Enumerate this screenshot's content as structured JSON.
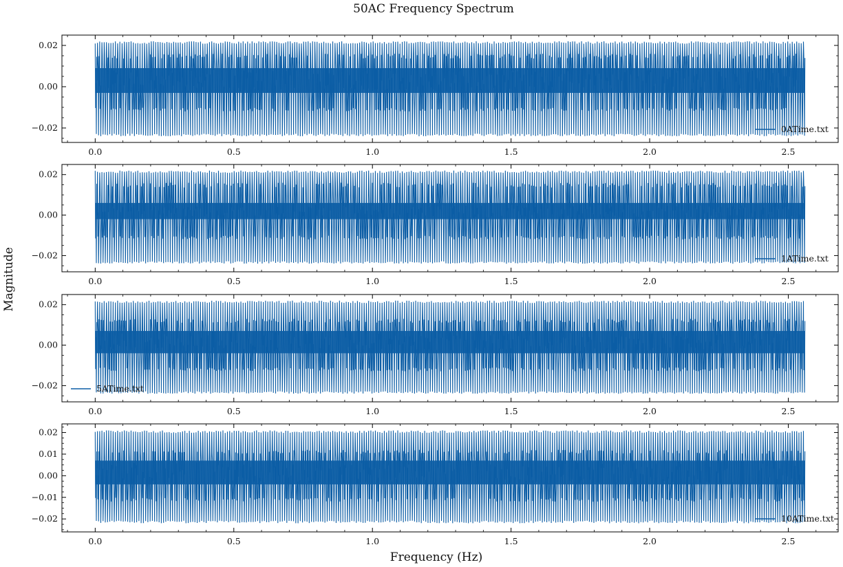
{
  "figure": {
    "title": "50AC Frequency Spectrum",
    "xlabel": "Frequency (Hz)",
    "ylabel": "Magnitude"
  },
  "chart_data": [
    {
      "type": "line",
      "series": [
        {
          "name": "0ATime.txt",
          "color": "#0c5da5"
        }
      ],
      "x_range": [
        0,
        2.56
      ],
      "xlim": [
        -0.12,
        2.68
      ],
      "ylim": [
        -0.027,
        0.025
      ],
      "yticks": [
        -0.02,
        0.0,
        0.02
      ],
      "ytick_labels": [
        "−0.02",
        "0.00",
        "0.02"
      ],
      "xticks": [
        0.0,
        0.5,
        1.0,
        1.5,
        2.0,
        2.5
      ],
      "xtick_labels": [
        "0.0",
        "0.5",
        "1.0",
        "1.5",
        "2.0",
        "2.5"
      ],
      "envelope": {
        "outer_max": 0.022,
        "outer_min": -0.024,
        "inner_max": 0.016,
        "inner_min": -0.012,
        "core_max": 0.009,
        "core_min": -0.003
      },
      "legend": "lower right",
      "grid": false
    },
    {
      "type": "line",
      "series": [
        {
          "name": "1ATime.txt",
          "color": "#0c5da5"
        }
      ],
      "x_range": [
        0,
        2.56
      ],
      "xlim": [
        -0.12,
        2.68
      ],
      "ylim": [
        -0.028,
        0.025
      ],
      "yticks": [
        -0.02,
        0.0,
        0.02
      ],
      "ytick_labels": [
        "−0.02",
        "0.00",
        "0.02"
      ],
      "xticks": [
        0.0,
        0.5,
        1.0,
        1.5,
        2.0,
        2.5
      ],
      "xtick_labels": [
        "0.0",
        "0.5",
        "1.0",
        "1.5",
        "2.0",
        "2.5"
      ],
      "envelope": {
        "outer_max": 0.022,
        "outer_min": -0.024,
        "inner_max": 0.016,
        "inner_min": -0.012,
        "core_max": 0.006,
        "core_min": -0.002
      },
      "legend": "lower right",
      "grid": false
    },
    {
      "type": "line",
      "series": [
        {
          "name": "5ATime.txt",
          "color": "#0c5da5"
        }
      ],
      "x_range": [
        0,
        2.56
      ],
      "xlim": [
        -0.12,
        2.68
      ],
      "ylim": [
        -0.028,
        0.025
      ],
      "yticks": [
        -0.02,
        0.0,
        0.02
      ],
      "ytick_labels": [
        "−0.02",
        "0.00",
        "0.02"
      ],
      "xticks": [
        0.0,
        0.5,
        1.0,
        1.5,
        2.0,
        2.5
      ],
      "xtick_labels": [
        "0.0",
        "0.5",
        "1.0",
        "1.5",
        "2.0",
        "2.5"
      ],
      "envelope": {
        "outer_max": 0.022,
        "outer_min": -0.024,
        "inner_max": 0.013,
        "inner_min": -0.013,
        "core_max": 0.007,
        "core_min": -0.004
      },
      "legend": "lower left",
      "grid": false
    },
    {
      "type": "line",
      "series": [
        {
          "name": "10ATime.txt",
          "color": "#0c5da5"
        }
      ],
      "x_range": [
        0,
        2.56
      ],
      "xlim": [
        -0.12,
        2.68
      ],
      "ylim": [
        -0.026,
        0.024
      ],
      "yticks": [
        -0.02,
        -0.01,
        0.0,
        0.01,
        0.02
      ],
      "ytick_labels": [
        "−0.02",
        "−0.01",
        "0.00",
        "0.01",
        "0.02"
      ],
      "xticks": [
        0.0,
        0.5,
        1.0,
        1.5,
        2.0,
        2.5
      ],
      "xtick_labels": [
        "0.0",
        "0.5",
        "1.0",
        "1.5",
        "2.0",
        "2.5"
      ],
      "envelope": {
        "outer_max": 0.021,
        "outer_min": -0.022,
        "inner_max": 0.012,
        "inner_min": -0.012,
        "core_max": 0.007,
        "core_min": -0.004
      },
      "legend": "lower right",
      "grid": false
    }
  ]
}
